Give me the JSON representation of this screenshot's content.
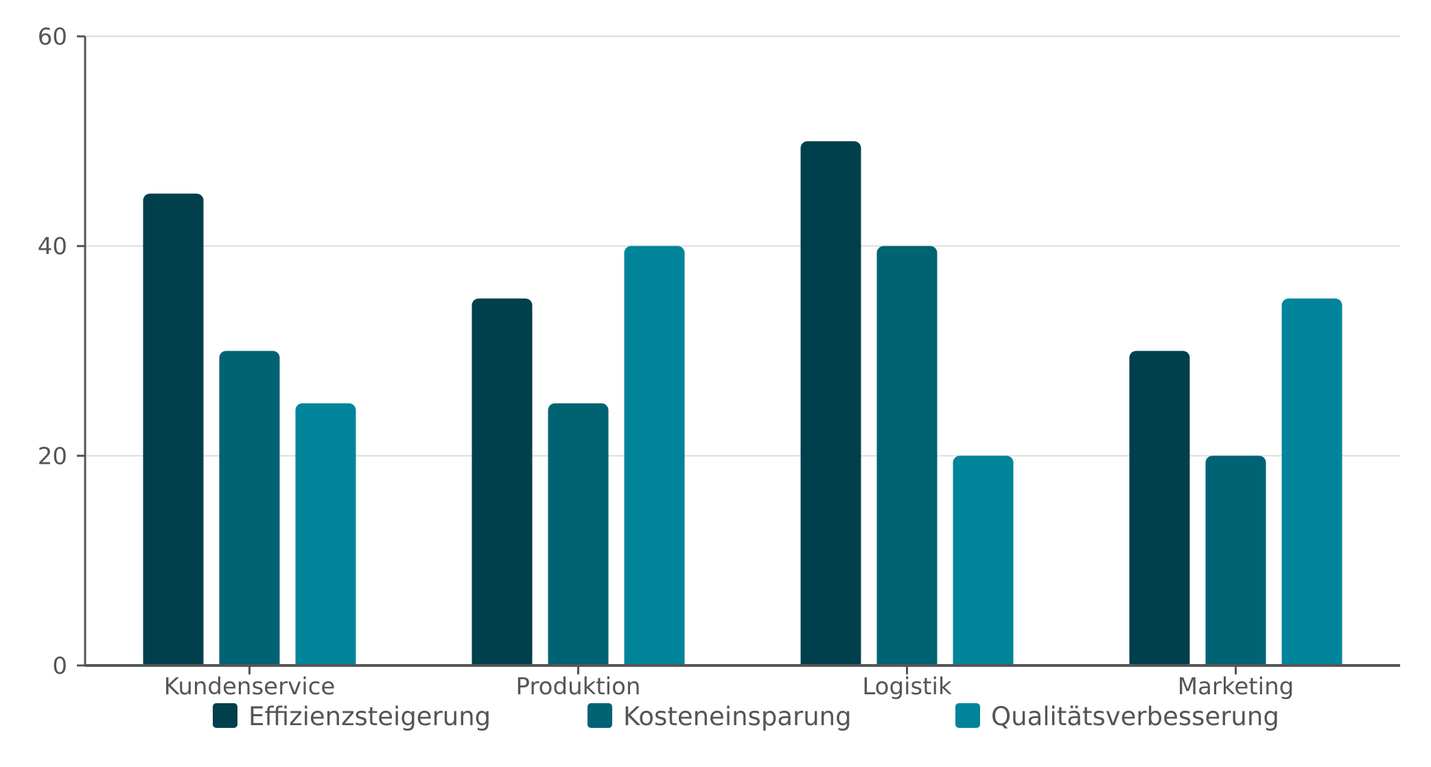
{
  "chart_data": {
    "type": "bar",
    "title": "",
    "xlabel": "",
    "ylabel": "",
    "categories": [
      "Kundenservice",
      "Produktion",
      "Logistik",
      "Marketing"
    ],
    "series": [
      {
        "name": "Effizienzsteigerung",
        "values": [
          45,
          35,
          50,
          30
        ],
        "color": "#003f4c"
      },
      {
        "name": "Kosteneinsparung",
        "values": [
          30,
          25,
          40,
          20
        ],
        "color": "#006373"
      },
      {
        "name": "Qualitätsverbesserung",
        "values": [
          25,
          40,
          20,
          35
        ],
        "color": "#00849a"
      }
    ],
    "ylim": [
      0,
      60
    ],
    "yticks": [
      0,
      20,
      40,
      60
    ],
    "grid": true,
    "legend_position": "bottom"
  }
}
